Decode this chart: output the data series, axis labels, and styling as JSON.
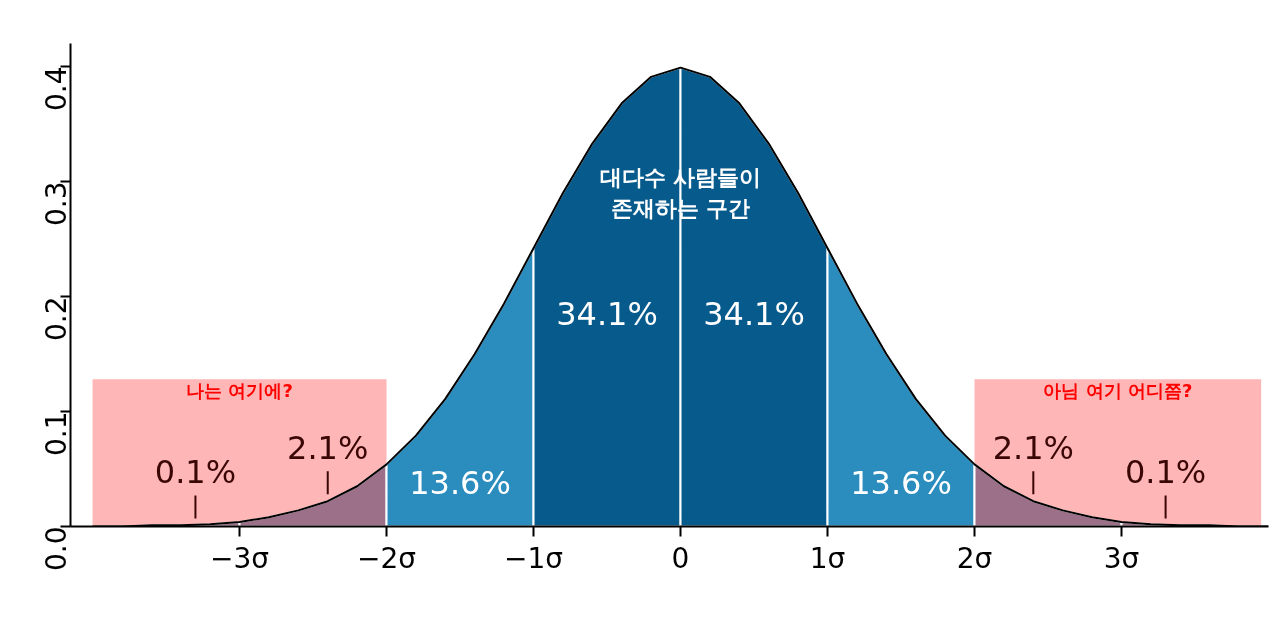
{
  "chart_data": {
    "type": "area",
    "series": [
      {
        "color": "#9c7088",
        "x": [
          -4,
          -3.8,
          -3.6,
          -3.4,
          -3.2,
          -3
        ],
        "values": [
          0.0,
          0.0,
          0.001,
          0.001,
          0.002,
          0.004
        ]
      },
      {
        "type": "area",
        "color": "#9c7088",
        "x": [
          -3,
          -2.8,
          -2.6,
          -2.4,
          -2.2,
          -2
        ],
        "values": [
          0.004,
          0.008,
          0.014,
          0.022,
          0.035,
          0.054
        ]
      },
      {
        "type": "area",
        "color": "#2b8cbe",
        "x": [
          -2,
          -1.8,
          -1.6,
          -1.4,
          -1.2,
          -1
        ],
        "values": [
          0.054,
          0.079,
          0.111,
          0.15,
          0.194,
          0.242
        ]
      },
      {
        "type": "area",
        "color": "#065a8c",
        "x": [
          -1,
          -0.8,
          -0.6,
          -0.4,
          -0.2,
          0
        ],
        "values": [
          0.242,
          0.29,
          0.333,
          0.368,
          0.391,
          0.399
        ]
      },
      {
        "type": "area",
        "color": "#065a8c",
        "x": [
          0,
          0.2,
          0.4,
          0.6,
          0.8,
          1
        ],
        "values": [
          0.399,
          0.391,
          0.368,
          0.333,
          0.29,
          0.242
        ]
      },
      {
        "type": "area",
        "color": "#2b8cbe",
        "x": [
          1,
          1.2,
          1.4,
          1.6,
          1.8,
          2
        ],
        "values": [
          0.242,
          0.194,
          0.15,
          0.111,
          0.079,
          0.054
        ]
      },
      {
        "type": "area",
        "color": "#9c7088",
        "x": [
          2,
          2.2,
          2.4,
          2.6,
          2.8,
          3
        ],
        "values": [
          0.054,
          0.035,
          0.022,
          0.014,
          0.008,
          0.004
        ]
      },
      {
        "type": "area",
        "color": "#9c7088",
        "x": [
          3,
          3.2,
          3.4,
          3.6,
          3.8,
          4
        ],
        "values": [
          0.004,
          0.002,
          0.001,
          0.001,
          0.0,
          0.0
        ]
      },
      {
        "type": "line",
        "color": "#000000",
        "x": [
          -4,
          -3.8,
          -3.6,
          -3.4,
          -3.2,
          -3,
          -2.8,
          -2.6,
          -2.4,
          -2.2,
          -2,
          -1.8,
          -1.6,
          -1.4,
          -1.2,
          -1,
          -0.8,
          -0.6,
          -0.4,
          -0.2,
          0,
          0.2,
          0.4,
          0.6,
          0.8,
          1,
          1.2,
          1.4,
          1.6,
          1.8,
          2,
          2.2,
          2.4,
          2.6,
          2.8,
          3,
          3.2,
          3.4,
          3.6,
          3.8,
          4
        ],
        "values": [
          0.0,
          0.0,
          0.001,
          0.001,
          0.002,
          0.004,
          0.008,
          0.014,
          0.022,
          0.035,
          0.054,
          0.079,
          0.111,
          0.15,
          0.194,
          0.242,
          0.29,
          0.333,
          0.368,
          0.391,
          0.399,
          0.391,
          0.368,
          0.333,
          0.29,
          0.242,
          0.194,
          0.15,
          0.111,
          0.079,
          0.054,
          0.035,
          0.022,
          0.014,
          0.008,
          0.004,
          0.002,
          0.001,
          0.001,
          0.0,
          0.0
        ]
      }
    ],
    "xlim": [
      -4.15,
      4.0
    ],
    "xticks": [
      {
        "value": -3,
        "label": "−3σ"
      },
      {
        "value": -2,
        "label": "−2σ"
      },
      {
        "value": -1,
        "label": "−1σ"
      },
      0,
      {
        "value": 1,
        "label": "1σ"
      },
      {
        "value": 2,
        "label": "2σ"
      },
      {
        "value": 3,
        "label": "3σ"
      }
    ],
    "ylim": [
      0,
      0.42
    ],
    "yticks": [
      {
        "value": 0,
        "label": "0.0"
      },
      0.1,
      0.2,
      0.3,
      0.4
    ],
    "grid": false,
    "bands": [
      {
        "axis": "x",
        "from": -4,
        "to": -2,
        "label": "나는 여기에?",
        "color": "#ffb6b6"
      },
      {
        "axis": "x",
        "from": 2,
        "to": 3.95,
        "label": "아님 여기 어디쯤?",
        "color": "#ffb6b6"
      }
    ],
    "annotations": [
      "대다수 사람들이\n존재하는 구간",
      "34.1%",
      "34.1%",
      "13.6%",
      "13.6%",
      "2.1%",
      "2.1%",
      "0.1%",
      "0.1%"
    ]
  }
}
